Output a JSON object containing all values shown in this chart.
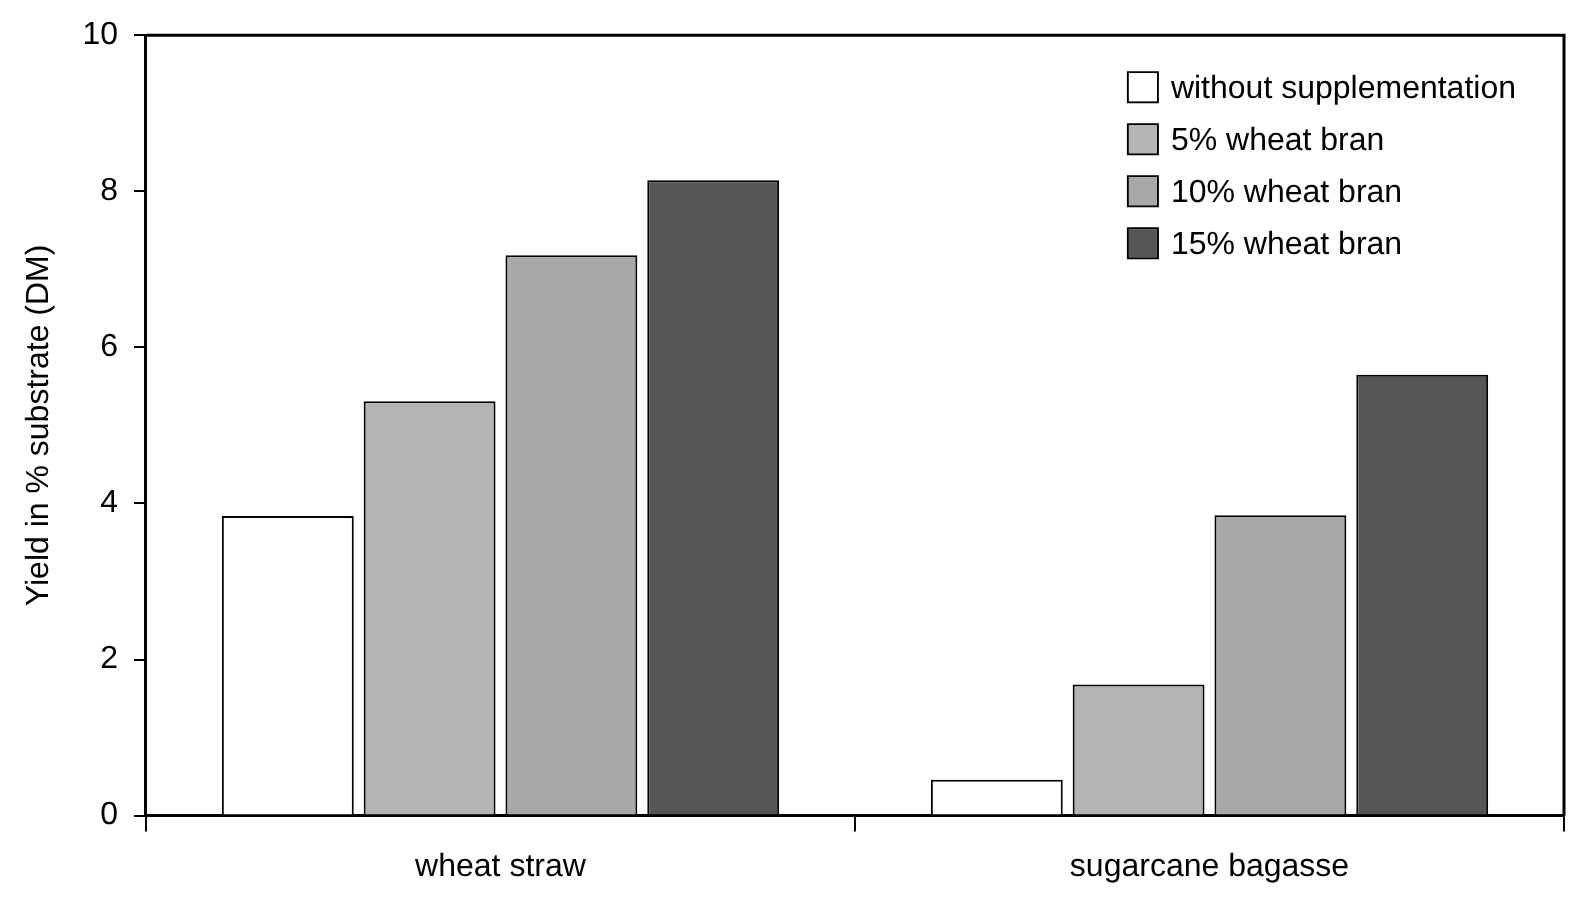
{
  "chart_data": {
    "type": "bar",
    "ylabel": "Yield in % substrate (DM)",
    "categories": [
      "wheat straw",
      "sugarcane bagasse"
    ],
    "series": [
      {
        "name": "without supplementation",
        "color": "#ffffff",
        "values": [
          3.84,
          0.46
        ]
      },
      {
        "name": "5% wheat bran",
        "color": "#b4b4b4",
        "values": [
          5.31,
          1.68
        ]
      },
      {
        "name": "10% wheat bran",
        "color": "#a8a8a8",
        "values": [
          7.18,
          3.85
        ]
      },
      {
        "name": "15% wheat bran",
        "color": "#555555",
        "values": [
          8.14,
          5.65
        ]
      }
    ],
    "ylim": [
      0,
      10
    ],
    "yticks": [
      0,
      2,
      4,
      6,
      8,
      10
    ],
    "grid": false,
    "legend": "top right"
  }
}
